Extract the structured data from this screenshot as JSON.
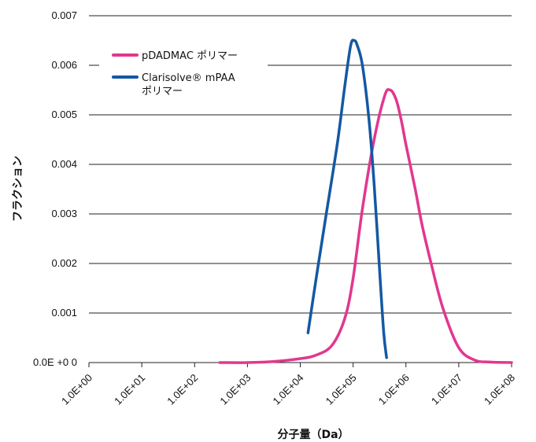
{
  "chart_data": {
    "type": "line",
    "title": "",
    "xlabel": "分子量（Da）",
    "ylabel": "フラクション",
    "x_scale": "log",
    "xlim": [
      1,
      100000000
    ],
    "ylim": [
      0,
      0.007
    ],
    "grid": "horizontal",
    "legend_position": "top-left",
    "x_tick_labels": [
      "1.0E+00",
      "1.0E+01",
      "1.0E+02",
      "1.0E+03",
      "1.0E+04",
      "1.0E+05",
      "1.0E+06",
      "1.0E+07",
      "1.0E+08"
    ],
    "x_tick_values": [
      1,
      10,
      100,
      1000,
      10000,
      100000,
      1000000,
      10000000,
      100000000
    ],
    "y_tick_labels": [
      "0.0E +0 0",
      "0.001",
      "0.002",
      "0.003",
      "0.004",
      "0.005",
      "0.006",
      "0.007"
    ],
    "y_tick_values": [
      0,
      0.001,
      0.002,
      0.003,
      0.004,
      0.005,
      0.006,
      0.007
    ],
    "series": [
      {
        "name": "pDADMAC ポリマー",
        "color": "#e2378f",
        "x": [
          300,
          1000,
          3000,
          10000,
          20000,
          40000,
          70000,
          100000,
          150000,
          250000,
          400000,
          500000,
          600000,
          700000,
          850000,
          1000000,
          1500000,
          2000000,
          3000000,
          5000000,
          10000000,
          20000000,
          40000000,
          100000000
        ],
        "y": [
          0.0,
          0.0,
          2e-05,
          8e-05,
          0.00015,
          0.00035,
          0.0009,
          0.0017,
          0.0031,
          0.0045,
          0.0054,
          0.0055,
          0.0054,
          0.0052,
          0.0048,
          0.0044,
          0.0035,
          0.0028,
          0.002,
          0.0011,
          0.0003,
          5e-05,
          1e-05,
          0.0
        ]
      },
      {
        "name": "Clarisolve® mPAA ポリマー",
        "color": "#1458a3",
        "x": [
          14000,
          20000,
          30000,
          50000,
          70000,
          90000,
          105000,
          120000,
          150000,
          200000,
          250000,
          320000,
          380000,
          430000
        ],
        "y": [
          0.0006,
          0.0017,
          0.0029,
          0.0044,
          0.0056,
          0.0064,
          0.0065,
          0.0064,
          0.006,
          0.0049,
          0.0036,
          0.0018,
          0.0006,
          0.0001
        ]
      }
    ]
  }
}
